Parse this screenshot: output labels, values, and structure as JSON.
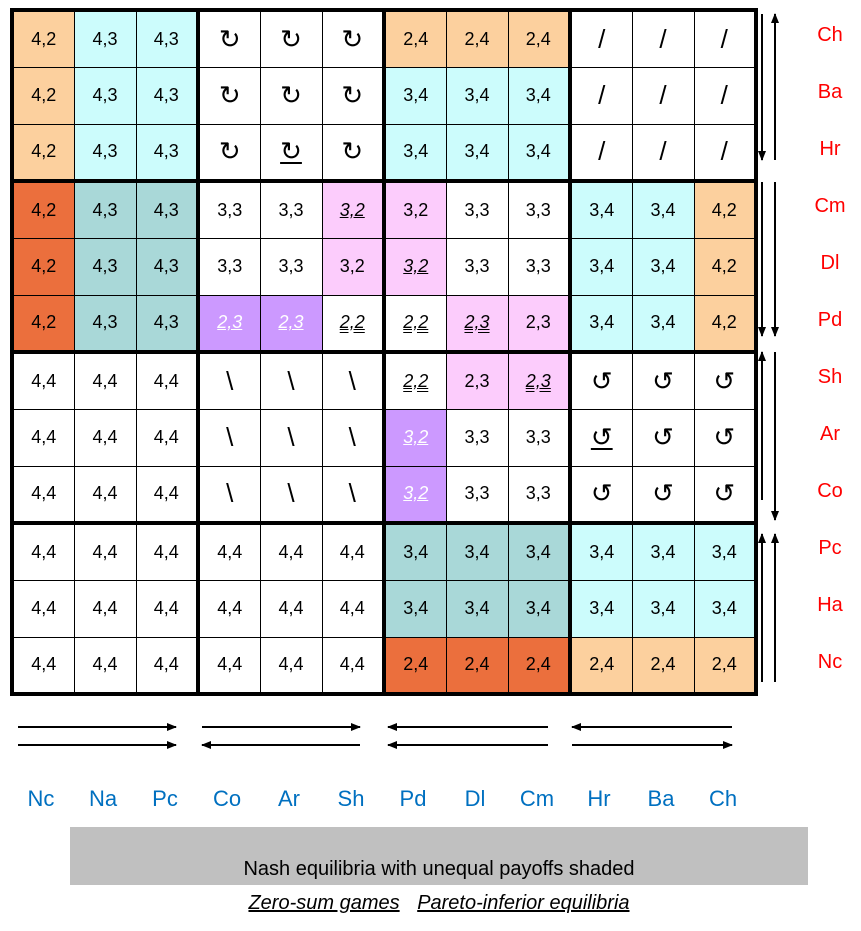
{
  "legend": {
    "shaded_note": "Nash equilibria with unequal payoffs shaded",
    "zero_sum": "Zero-sum games",
    "pareto": "Pareto-inferior equilibria"
  },
  "row_labels": [
    "Ch",
    "Ba",
    "Hr",
    "Cm",
    "Dl",
    "Pd",
    "Sh",
    "Ar",
    "Co",
    "Pc",
    "Ha",
    "Nc"
  ],
  "col_labels": [
    "Nc",
    "Na",
    "Pc",
    "Co",
    "Ar",
    "Sh",
    "Pd",
    "Dl",
    "Cm",
    "Hr",
    "Ba",
    "Ch"
  ],
  "colors": {
    "orange_light": "#fcd09e",
    "orange_dark": "#eb6f3d",
    "cyan": "#ccfcfc",
    "teal": "#a9d8d8",
    "pink": "#fcccfc",
    "purple": "#cc99ff",
    "white": "#ffffff",
    "row_label": "#ff0000",
    "col_label": "#0070c0",
    "legend_bg": "#c0c0c0"
  },
  "grid": [
    [
      "4,2",
      "4,3",
      "4,3",
      "↻",
      "↻",
      "↻",
      "2,4",
      "2,4",
      "2,4",
      "/",
      "/",
      "/"
    ],
    [
      "4,2",
      "4,3",
      "4,3",
      "↻",
      "↻",
      "↻",
      "3,4",
      "3,4",
      "3,4",
      "/",
      "/",
      "/"
    ],
    [
      "4,2",
      "4,3",
      "4,3",
      "↻",
      "↻",
      "↻",
      "3,4",
      "3,4",
      "3,4",
      "/",
      "/",
      "/"
    ],
    [
      "4,2",
      "4,3",
      "4,3",
      "3,3",
      "3,3",
      "3,2",
      "3,2",
      "3,3",
      "3,3",
      "3,4",
      "3,4",
      "4,2"
    ],
    [
      "4,2",
      "4,3",
      "4,3",
      "3,3",
      "3,3",
      "3,2",
      "3,2",
      "3,3",
      "3,3",
      "3,4",
      "3,4",
      "4,2"
    ],
    [
      "4,2",
      "4,3",
      "4,3",
      "2,3",
      "2,3",
      "2,2",
      "2,2",
      "2,3",
      "2,3",
      "3,4",
      "3,4",
      "4,2"
    ],
    [
      "4,4",
      "4,4",
      "4,4",
      "\\",
      "\\",
      "\\",
      "2,2",
      "2,3",
      "2,3",
      "↺",
      "↺",
      "↺"
    ],
    [
      "4,4",
      "4,4",
      "4,4",
      "\\",
      "\\",
      "\\",
      "3,2",
      "3,3",
      "3,3",
      "↺",
      "↺",
      "↺"
    ],
    [
      "4,4",
      "4,4",
      "4,4",
      "\\",
      "\\",
      "\\",
      "3,2",
      "3,3",
      "3,3",
      "↺",
      "↺",
      "↺"
    ],
    [
      "4,4",
      "4,4",
      "4,4",
      "4,4",
      "4,4",
      "4,4",
      "3,4",
      "3,4",
      "3,4",
      "3,4",
      "3,4",
      "3,4"
    ],
    [
      "4,4",
      "4,4",
      "4,4",
      "4,4",
      "4,4",
      "4,4",
      "3,4",
      "3,4",
      "3,4",
      "3,4",
      "3,4",
      "3,4"
    ],
    [
      "4,4",
      "4,4",
      "4,4",
      "4,4",
      "4,4",
      "4,4",
      "2,4",
      "2,4",
      "2,4",
      "2,4",
      "2,4",
      "2,4"
    ]
  ],
  "fills": [
    [
      "orange_light",
      "cyan",
      "cyan",
      "white",
      "white",
      "white",
      "orange_light",
      "orange_light",
      "orange_light",
      "white",
      "white",
      "white"
    ],
    [
      "orange_light",
      "cyan",
      "cyan",
      "white",
      "white",
      "white",
      "cyan",
      "cyan",
      "cyan",
      "white",
      "white",
      "white"
    ],
    [
      "orange_light",
      "cyan",
      "cyan",
      "white",
      "white",
      "white",
      "cyan",
      "cyan",
      "cyan",
      "white",
      "white",
      "white"
    ],
    [
      "orange_dark",
      "teal",
      "teal",
      "white",
      "white",
      "pink",
      "pink",
      "white",
      "white",
      "cyan",
      "cyan",
      "orange_light"
    ],
    [
      "orange_dark",
      "teal",
      "teal",
      "white",
      "white",
      "pink",
      "pink",
      "white",
      "white",
      "cyan",
      "cyan",
      "orange_light"
    ],
    [
      "orange_dark",
      "teal",
      "teal",
      "purple",
      "purple",
      "white",
      "white",
      "pink",
      "pink",
      "cyan",
      "cyan",
      "orange_light"
    ],
    [
      "white",
      "white",
      "white",
      "white",
      "white",
      "white",
      "white",
      "pink",
      "pink",
      "white",
      "white",
      "white"
    ],
    [
      "white",
      "white",
      "white",
      "white",
      "white",
      "white",
      "purple",
      "white",
      "white",
      "white",
      "white",
      "white"
    ],
    [
      "white",
      "white",
      "white",
      "white",
      "white",
      "white",
      "purple",
      "white",
      "white",
      "white",
      "white",
      "white"
    ],
    [
      "white",
      "white",
      "white",
      "white",
      "white",
      "white",
      "teal",
      "teal",
      "teal",
      "cyan",
      "cyan",
      "cyan"
    ],
    [
      "white",
      "white",
      "white",
      "white",
      "white",
      "white",
      "teal",
      "teal",
      "teal",
      "cyan",
      "cyan",
      "cyan"
    ],
    [
      "white",
      "white",
      "white",
      "white",
      "white",
      "white",
      "orange_dark",
      "orange_dark",
      "orange_dark",
      "orange_light",
      "orange_light",
      "orange_light"
    ]
  ],
  "styles": [
    [
      "",
      "",
      "",
      "",
      "",
      "",
      "",
      "",
      "",
      "",
      "",
      ""
    ],
    [
      "",
      "",
      "",
      "",
      "",
      "",
      "",
      "",
      "",
      "",
      "",
      ""
    ],
    [
      "",
      "",
      "",
      "",
      "ul",
      "",
      "",
      "",
      "",
      "",
      "",
      ""
    ],
    [
      "",
      "",
      "",
      "",
      "",
      "it ul",
      "",
      "",
      "",
      "",
      "",
      ""
    ],
    [
      "",
      "",
      "",
      "",
      "",
      "",
      "it ul",
      "",
      "",
      "",
      "",
      ""
    ],
    [
      "",
      "",
      "",
      "it ul wl",
      "it ul wl",
      "it dul",
      "it dul",
      "it dul",
      "",
      "",
      "",
      ""
    ],
    [
      "",
      "",
      "",
      "",
      "",
      "",
      "it dul",
      "",
      "it dul",
      "",
      "",
      ""
    ],
    [
      "",
      "",
      "",
      "",
      "",
      "",
      "it ul wl",
      "",
      "",
      "ul",
      "",
      ""
    ],
    [
      "",
      "",
      "",
      "",
      "",
      "",
      "it ul wl",
      "",
      "",
      "",
      "",
      ""
    ],
    [
      "",
      "",
      "",
      "",
      "",
      "",
      "",
      "",
      "",
      "",
      "",
      ""
    ],
    [
      "",
      "",
      "",
      "",
      "",
      "",
      "",
      "",
      "",
      "",
      "",
      ""
    ],
    [
      "",
      "",
      "",
      "",
      "",
      "",
      "",
      "",
      "",
      "",
      "",
      ""
    ]
  ]
}
